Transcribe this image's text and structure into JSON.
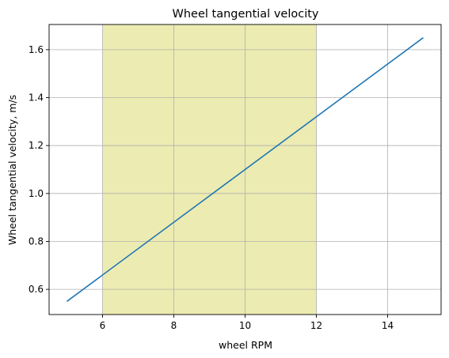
{
  "chart_data": {
    "type": "line",
    "title": "Wheel tangential velocity",
    "xlabel": "wheel RPM",
    "ylabel": "Wheel tangential velocity, m/s",
    "xlim": [
      4.5,
      15.5
    ],
    "ylim": [
      0.495,
      1.705
    ],
    "xticks": [
      6,
      8,
      10,
      12,
      14
    ],
    "xtick_labels": [
      "6",
      "8",
      "10",
      "12",
      "14"
    ],
    "yticks": [
      0.6,
      0.8,
      1.0,
      1.2,
      1.4,
      1.6
    ],
    "ytick_labels": [
      "0.6",
      "0.8",
      "1.0",
      "1.2",
      "1.4",
      "1.6"
    ],
    "grid": true,
    "shaded_region": {
      "x_start": 6,
      "x_end": 12,
      "color": "#ecebb1"
    },
    "series": [
      {
        "x": [
          5,
          15
        ],
        "y": [
          0.55,
          1.65
        ],
        "color": "#1f77b4"
      }
    ]
  }
}
